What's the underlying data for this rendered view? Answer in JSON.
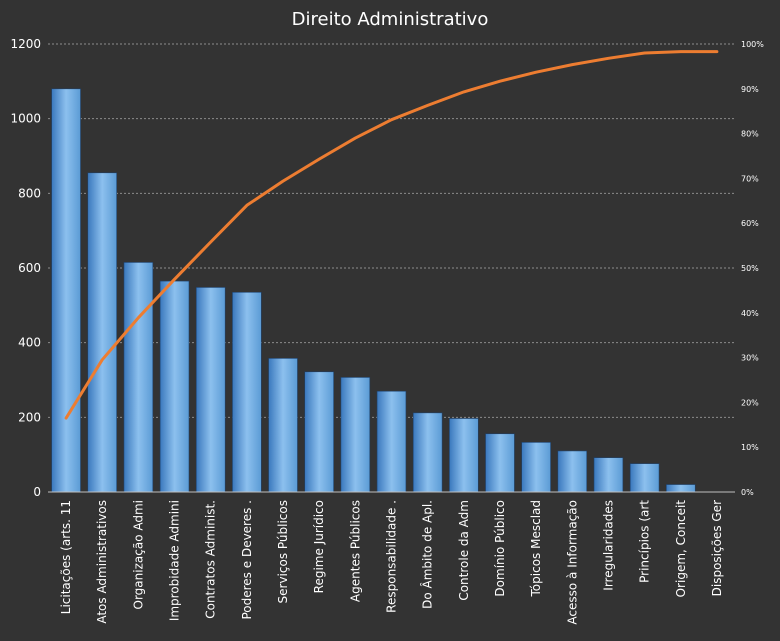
{
  "chart_data": {
    "type": "bar",
    "title": "Direito Administrativo",
    "categories": [
      "Licitações (arts. 11",
      "Atos Administrativos",
      "Organização Admi",
      "Improbidade Admini",
      "Contratos Administ.",
      "Poderes e Deveres .",
      "Serviços Públicos",
      "Regime Jurídico",
      "Agentes Públicos",
      "Responsabilidade .",
      "Do Âmbito de Apl.",
      "Controle da Adm",
      "Domínio Público",
      "Tópicos Mesclad",
      "Acesso à Informação",
      "Irregularidades",
      "Princípios (art",
      "Origem, Conceit",
      "Disposições Ger"
    ],
    "series": [
      {
        "values": [
          1080,
          855,
          615,
          565,
          548,
          535,
          358,
          322,
          307,
          270,
          212,
          197,
          156,
          133,
          110,
          92,
          76,
          20,
          0
        ]
      }
    ],
    "cumulative_percent": [
      16.5,
      29.5,
      38.9,
      47.5,
      55.8,
      64.0,
      69.4,
      74.3,
      79.0,
      83.1,
      86.3,
      89.3,
      91.7,
      93.7,
      95.4,
      96.8,
      98.0,
      98.3,
      98.3
    ],
    "ylim": [
      0,
      1200
    ],
    "yticks": [
      "0",
      "200",
      "400",
      "600",
      "800",
      "1000",
      "1200"
    ],
    "y2lim": [
      0,
      100
    ],
    "y2ticks": [
      "0%",
      "10%",
      "20%",
      "30%",
      "40%",
      "50%",
      "60%",
      "70%",
      "80%",
      "90%",
      "100%"
    ],
    "grid": true,
    "legend": "none",
    "colors": {
      "background": "#333333",
      "bar": "#5b9bd5",
      "bar_light": "#8cc0ee",
      "bar_dark": "#3a78bd",
      "line": "#ed7d31",
      "grid": "#8c8c8c",
      "text": "#ffffff"
    }
  }
}
